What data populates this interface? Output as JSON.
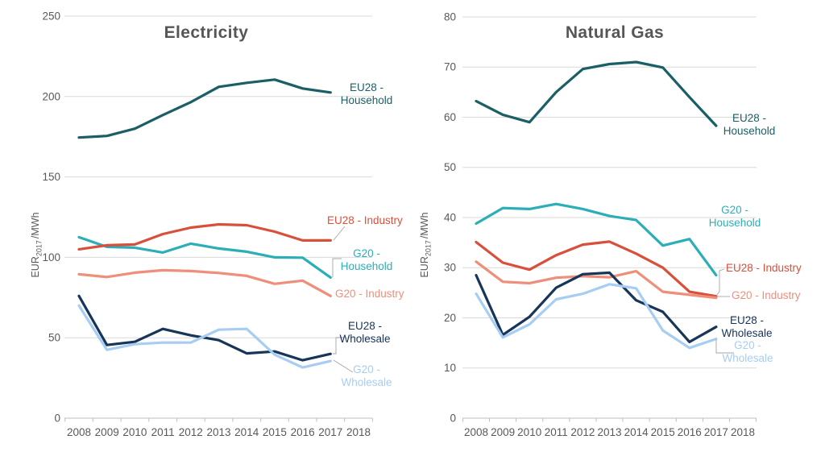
{
  "chart_data": [
    {
      "type": "line",
      "title": "Electricity",
      "ylabel": {
        "prefix": "EUR",
        "sub": "2017",
        "suffix": "/MWh"
      },
      "ylim": [
        0,
        250
      ],
      "y_ticks": [
        0,
        50,
        100,
        150,
        200,
        250
      ],
      "x_axis_ticks": [
        "2008",
        "2009",
        "2010",
        "2011",
        "2012",
        "2013",
        "2014",
        "2015",
        "2016",
        "2017",
        "2018"
      ],
      "x": [
        2008,
        2009,
        2010,
        2011,
        2012,
        2013,
        2014,
        2015,
        2016,
        2017
      ],
      "grid": true,
      "legend_position": "end-of-line labels",
      "series": [
        {
          "name": "EU28 - Household",
          "label_lines": [
            "EU28 -",
            "Household"
          ],
          "color": "#1A5F66",
          "values": [
            174.5,
            175.5,
            180,
            188.5,
            196.5,
            206,
            208.5,
            210.5,
            205,
            202.5
          ]
        },
        {
          "name": "G20 - Household",
          "label_lines": [
            "G20 -",
            "Household"
          ],
          "color": "#2BAEB8",
          "values": [
            112.5,
            106.5,
            106,
            103,
            108.5,
            105.5,
            103.5,
            100,
            99.8,
            87.5
          ]
        },
        {
          "name": "EU28 - Industry",
          "label_lines": [
            "EU28 - Industry"
          ],
          "color": "#D8503C",
          "values": [
            105,
            107.5,
            108,
            114.5,
            118.5,
            120.5,
            120,
            116,
            110.5,
            110.5
          ]
        },
        {
          "name": "G20 - Industry",
          "label_lines": [
            "G20 - Industry"
          ],
          "color": "#EF8E7B",
          "values": [
            89.5,
            87.8,
            90.5,
            92,
            91.5,
            90.3,
            88.5,
            83.5,
            85.5,
            76
          ]
        },
        {
          "name": "EU28 - Wholesale",
          "label_lines": [
            "EU28 -",
            "Wholesale"
          ],
          "color": "#173459",
          "values": [
            76,
            45.5,
            47.5,
            55.5,
            51.5,
            48.5,
            40.3,
            41.5,
            36,
            40
          ]
        },
        {
          "name": "G20 - Wholesale",
          "label_lines": [
            "G20 -",
            "Wholesale"
          ],
          "color": "#A7CDF2",
          "values": [
            70,
            42.5,
            46,
            47,
            47,
            55,
            55.5,
            39.5,
            31.5,
            35.5
          ]
        }
      ]
    },
    {
      "type": "line",
      "title": "Natural Gas",
      "ylabel": {
        "prefix": "EUR",
        "sub": "2017",
        "suffix": "/MWh"
      },
      "ylim": [
        0,
        80
      ],
      "y_ticks": [
        0,
        10,
        20,
        30,
        40,
        50,
        60,
        70,
        80
      ],
      "x_axis_ticks": [
        "2008",
        "2009",
        "2010",
        "2011",
        "2012",
        "2013",
        "2014",
        "2015",
        "2016",
        "2017",
        "2018"
      ],
      "x": [
        2008,
        2009,
        2010,
        2011,
        2012,
        2013,
        2014,
        2015,
        2016,
        2017
      ],
      "grid": true,
      "legend_position": "end-of-line labels",
      "series": [
        {
          "name": "EU28 - Household",
          "label_lines": [
            "EU28 -",
            "Household"
          ],
          "color": "#1A5F66",
          "values": [
            63.2,
            60.5,
            59,
            65,
            69.6,
            70.6,
            71,
            69.9,
            64,
            58.3
          ]
        },
        {
          "name": "G20 - Household",
          "label_lines": [
            "G20 -",
            "Household"
          ],
          "color": "#2BAEB8",
          "values": [
            38.8,
            41.9,
            41.7,
            42.7,
            41.7,
            40.3,
            39.5,
            34.4,
            35.7,
            28.5
          ]
        },
        {
          "name": "EU28 - Industry",
          "label_lines": [
            "EU28 - Industry"
          ],
          "color": "#D8503C",
          "values": [
            35.1,
            31,
            29.6,
            32.5,
            34.6,
            35.2,
            32.8,
            30,
            25.2,
            24.3
          ]
        },
        {
          "name": "G20 - Industry",
          "label_lines": [
            "G20 - Industry"
          ],
          "color": "#EF8E7B",
          "values": [
            31.2,
            27.2,
            26.9,
            28,
            28.3,
            28.1,
            29.3,
            25.2,
            24.6,
            24
          ]
        },
        {
          "name": "EU28 - Wholesale",
          "label_lines": [
            "EU28 -",
            "Wholesale"
          ],
          "color": "#173459",
          "values": [
            28.5,
            16.6,
            20.2,
            26,
            28.7,
            29,
            23.5,
            21.2,
            15.2,
            18.2
          ]
        },
        {
          "name": "G20 - Wholesale",
          "label_lines": [
            "G20 -",
            "Wholesale"
          ],
          "color": "#A7CDF2",
          "values": [
            24.8,
            16.1,
            18.7,
            23.7,
            24.8,
            26.7,
            25.9,
            17.5,
            14,
            15.8
          ]
        }
      ]
    }
  ]
}
